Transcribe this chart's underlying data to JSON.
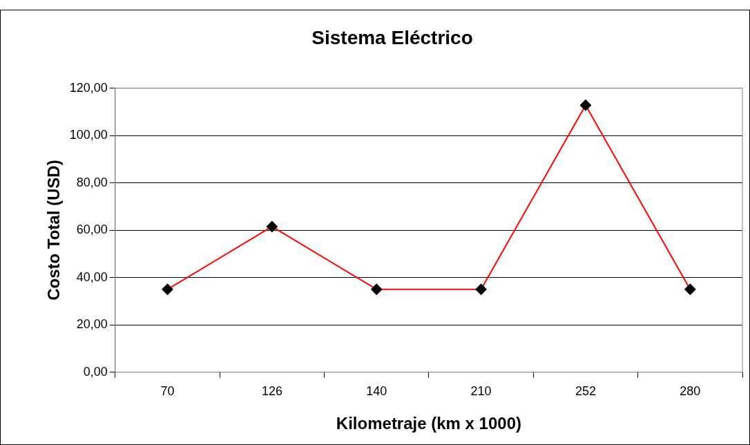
{
  "chart_data": {
    "type": "line",
    "title": "Sistema Eléctrico",
    "xlabel": "Kilometraje (km x 1000)",
    "ylabel": "Costo Total (USD)",
    "categories": [
      "70",
      "126",
      "140",
      "210",
      "252",
      "280"
    ],
    "series": [
      {
        "color": "#ff0000",
        "values": [
          35,
          61.5,
          35,
          35,
          112.8,
          35
        ]
      }
    ],
    "ylim": [
      0,
      120
    ],
    "yticks": [
      {
        "value": 0,
        "label": "0,00"
      },
      {
        "value": 20,
        "label": "20,00"
      },
      {
        "value": 40,
        "label": "40,00"
      },
      {
        "value": 60,
        "label": "60,00"
      },
      {
        "value": 80,
        "label": "80,00"
      },
      {
        "value": 100,
        "label": "100,00"
      },
      {
        "value": 120,
        "label": "120,00"
      }
    ],
    "grid": "y",
    "marker": "diamond",
    "line_style": "solid"
  }
}
